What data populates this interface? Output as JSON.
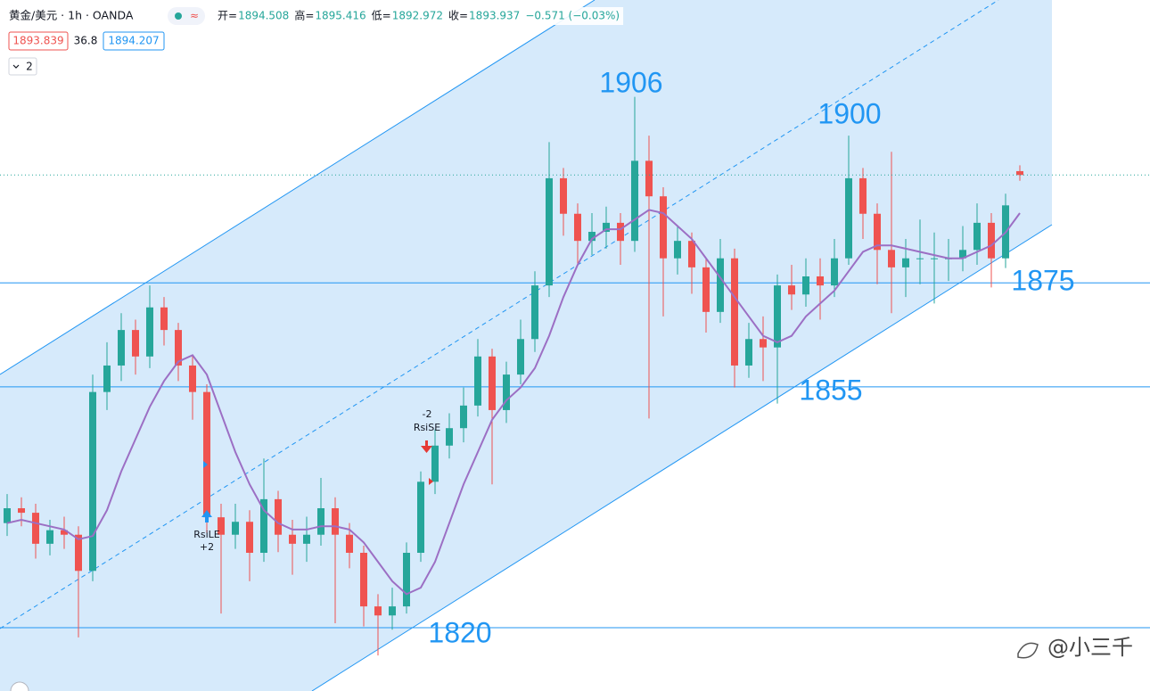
{
  "chart_data": {
    "type": "candlestick",
    "title": "黄金/美元 · 1h · OANDA",
    "header_stats": [
      {
        "label": "开=",
        "value": 1894.508
      },
      {
        "label": "高=",
        "value": 1895.416
      },
      {
        "label": "低=",
        "value": 1892.972
      },
      {
        "label": "收=",
        "value": 1893.937
      }
    ],
    "change": "−0.571 (−0.03%)",
    "bid": 1893.839,
    "spread": 36.8,
    "ask": 1894.207,
    "indicator_count": 2,
    "ylim": [
      1814,
      1921
    ],
    "up_color": "#26a69a",
    "down_color": "#ef5350",
    "open": [
      1840,
      1842.3,
      1841.6,
      1836.8,
      1838.9,
      1838.2,
      1832.6,
      1860.3,
      1864.4,
      1869.9,
      1865.8,
      1873.4,
      1869.9,
      1864.4,
      1860.3,
      1840.9,
      1838.2,
      1840.2,
      1835.4,
      1843.7,
      1838.2,
      1836.8,
      1838.2,
      1842.3,
      1838.2,
      1835.4,
      1827.1,
      1825.7,
      1827.1,
      1835.4,
      1846.4,
      1852.0,
      1854.7,
      1858.2,
      1865.8,
      1857.5,
      1863.0,
      1868.5,
      1876.8,
      1893.4,
      1887.9,
      1883.7,
      1885.1,
      1886.5,
      1883.7,
      1896.1,
      1890.6,
      1881.0,
      1883.7,
      1879.6,
      1872.7,
      1881.0,
      1864.4,
      1868.5,
      1867.2,
      1876.8,
      1875.4,
      1878.2,
      1876.8,
      1881.0,
      1893.4,
      1887.9,
      1882.3,
      1879.6,
      1881.0,
      1881.0,
      1881.0,
      1881.0,
      1882.3,
      1886.5,
      1881.0,
      1894.5
    ],
    "high": [
      1844.5,
      1844.0,
      1843.0,
      1840.5,
      1841.0,
      1839.5,
      1863.0,
      1868.0,
      1872.5,
      1871.5,
      1876.8,
      1875.0,
      1871.0,
      1866.0,
      1861.5,
      1843.0,
      1843.0,
      1842.0,
      1850.0,
      1845.0,
      1840.5,
      1841.0,
      1847.0,
      1844.0,
      1840.0,
      1836.5,
      1829.0,
      1830.0,
      1837.0,
      1848.0,
      1854.5,
      1857.0,
      1861.0,
      1868.5,
      1867.0,
      1865.0,
      1871.5,
      1879.0,
      1899.0,
      1895.0,
      1889.5,
      1888.0,
      1889.0,
      1888.0,
      1906.0,
      1900.0,
      1892.0,
      1886.0,
      1885.0,
      1881.0,
      1884.0,
      1882.5,
      1871.0,
      1872.0,
      1878.5,
      1880.0,
      1881.0,
      1881.0,
      1884.0,
      1900.0,
      1895.0,
      1889.5,
      1897.5,
      1884.0,
      1887.0,
      1885.0,
      1884.0,
      1886.0,
      1889.5,
      1888.0,
      1891.0,
      1895.4
    ],
    "low": [
      1838.0,
      1839.5,
      1834.5,
      1835.0,
      1836.0,
      1822.3,
      1831.0,
      1857.5,
      1862.0,
      1863.0,
      1864.0,
      1867.5,
      1862.0,
      1856.0,
      1838.5,
      1826.0,
      1836.0,
      1831.0,
      1834.0,
      1835.5,
      1832.0,
      1834.0,
      1836.5,
      1824.5,
      1833.0,
      1824.0,
      1819.5,
      1823.5,
      1826.0,
      1834.0,
      1844.5,
      1850.0,
      1852.5,
      1856.5,
      1846.0,
      1855.5,
      1861.5,
      1866.5,
      1875.0,
      1884.5,
      1880.0,
      1881.5,
      1882.5,
      1880.0,
      1882.0,
      1856.2,
      1872.0,
      1878.5,
      1875.5,
      1869.5,
      1871.0,
      1861.0,
      1862.5,
      1862.0,
      1858.5,
      1873.0,
      1873.5,
      1871.5,
      1875.0,
      1880.0,
      1884.0,
      1877.0,
      1872.5,
      1875.0,
      1877.0,
      1874.0,
      1877.5,
      1879.0,
      1880.0,
      1876.5,
      1879.5,
      1893.0
    ],
    "close": [
      1842.3,
      1841.6,
      1836.8,
      1838.9,
      1838.2,
      1832.6,
      1860.3,
      1864.4,
      1869.9,
      1865.8,
      1873.4,
      1869.9,
      1864.4,
      1860.3,
      1840.9,
      1838.2,
      1840.2,
      1835.4,
      1843.7,
      1838.2,
      1836.8,
      1838.2,
      1842.3,
      1838.2,
      1835.4,
      1827.1,
      1825.7,
      1827.1,
      1835.4,
      1846.4,
      1852.0,
      1854.7,
      1858.2,
      1865.8,
      1857.5,
      1863.0,
      1868.5,
      1876.8,
      1893.4,
      1887.9,
      1883.7,
      1885.1,
      1886.5,
      1883.7,
      1896.1,
      1890.6,
      1881.0,
      1883.7,
      1879.6,
      1872.7,
      1881.0,
      1864.4,
      1868.5,
      1867.2,
      1876.8,
      1875.4,
      1878.2,
      1876.8,
      1881.0,
      1893.4,
      1887.9,
      1882.3,
      1879.6,
      1881.0,
      1881.0,
      1881.0,
      1881.0,
      1882.3,
      1886.5,
      1881.0,
      1889.2,
      1893.9
    ],
    "ma": {
      "color": "#9c6fc4",
      "values": [
        1840,
        1840.5,
        1840,
        1839.5,
        1839,
        1837.5,
        1838,
        1842,
        1848,
        1853,
        1858,
        1862,
        1865,
        1866,
        1863,
        1857,
        1851,
        1846,
        1842,
        1840,
        1839,
        1839,
        1839.5,
        1839.5,
        1839,
        1837,
        1834,
        1831,
        1829,
        1830,
        1834,
        1840,
        1846,
        1851,
        1856,
        1859,
        1861,
        1864,
        1869,
        1875,
        1880,
        1884,
        1885.5,
        1885.5,
        1887,
        1888.5,
        1888,
        1886,
        1884,
        1881,
        1878,
        1875,
        1872,
        1869,
        1868,
        1869,
        1872,
        1874,
        1876,
        1879,
        1882,
        1883,
        1883,
        1882.5,
        1882,
        1881.5,
        1881,
        1881,
        1882,
        1883,
        1885,
        1888
      ]
    },
    "levels": [
      1877.2,
      1861.1,
      1823.8
    ],
    "annotations": [
      "1906",
      "1900",
      "1875",
      "1855",
      "1820"
    ],
    "signals": [
      {
        "name": "RsiSE",
        "amount": "-2"
      },
      {
        "name": "RsiLE",
        "amount": "+2"
      }
    ],
    "watermark": "@小三千"
  }
}
